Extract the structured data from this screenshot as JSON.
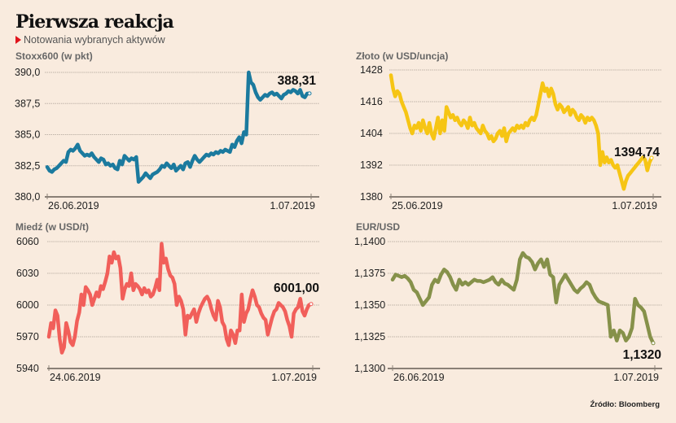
{
  "header": {
    "title": "Pierwsza reakcja",
    "subtitle": "Notowania wybranych aktywów",
    "bullet_color": "#e0141c"
  },
  "source": "Źródło: Bloomberg",
  "chart_data": [
    {
      "id": "stoxx",
      "type": "line",
      "title": "Stoxx600 (w pkt)",
      "color": "#1b7a9e",
      "ylim": [
        380.0,
        390.0
      ],
      "yticks": [
        "390,0",
        "387,5",
        "385,0",
        "382,5",
        "380,0"
      ],
      "ytick_values": [
        390.0,
        387.5,
        385.0,
        382.5,
        380.0
      ],
      "xticks": [
        "26.06.2019",
        "1.07.2019"
      ],
      "last_label": "388,31",
      "grid": true,
      "values": [
        382.4,
        382.1,
        382.0,
        382.2,
        382.3,
        382.5,
        382.7,
        382.9,
        382.8,
        383.6,
        383.8,
        383.7,
        383.9,
        384.2,
        383.7,
        383.5,
        383.3,
        383.4,
        383.3,
        383.5,
        383.2,
        383.0,
        382.8,
        383.1,
        383.0,
        382.6,
        382.7,
        382.5,
        382.6,
        382.3,
        382.2,
        382.9,
        382.6,
        383.3,
        383.1,
        382.9,
        383.1,
        383.0,
        383.2,
        381.2,
        381.4,
        381.6,
        381.9,
        381.7,
        381.5,
        381.8,
        381.9,
        382.0,
        382.2,
        382.5,
        382.4,
        382.7,
        382.5,
        382.3,
        382.6,
        382.1,
        382.3,
        382.5,
        382.2,
        382.7,
        382.8,
        382.4,
        382.9,
        383.3,
        383.0,
        382.8,
        383.0,
        383.2,
        383.4,
        383.3,
        383.5,
        383.4,
        383.6,
        383.5,
        383.7,
        383.6,
        383.8,
        383.7,
        383.6,
        384.2,
        384.0,
        384.5,
        384.8,
        384.3,
        385.2,
        385.0,
        390.0,
        389.2,
        389.0,
        388.4,
        388.0,
        387.8,
        388.0,
        388.2,
        388.1,
        388.3,
        388.4,
        388.2,
        388.3,
        388.1,
        387.9,
        388.2,
        388.3,
        388.5,
        388.4,
        388.6,
        388.5,
        388.3,
        388.6,
        388.1,
        388.0,
        388.3,
        388.31
      ]
    },
    {
      "id": "gold",
      "type": "line",
      "title": "Złoto (w USD/uncja)",
      "color": "#f6c514",
      "ylim": [
        1380,
        1428
      ],
      "yticks": [
        "1428",
        "1416",
        "1404",
        "1392",
        "1380"
      ],
      "ytick_values": [
        1428,
        1416,
        1404,
        1392,
        1380
      ],
      "xticks": [
        "25.06.2019",
        "1.07.2019"
      ],
      "last_label": "1394,74",
      "grid": true,
      "values": [
        1426,
        1421,
        1418,
        1420,
        1419,
        1416,
        1414,
        1412,
        1409,
        1406,
        1404,
        1407,
        1406,
        1408,
        1405,
        1409,
        1406,
        1404,
        1408,
        1404,
        1402,
        1406,
        1410,
        1404,
        1409,
        1405,
        1414,
        1412,
        1410,
        1411,
        1409,
        1410,
        1408,
        1407,
        1409,
        1408,
        1406,
        1410,
        1407,
        1408,
        1406,
        1405,
        1404,
        1407,
        1405,
        1404,
        1402,
        1403,
        1401,
        1402,
        1404,
        1405,
        1403,
        1406,
        1401,
        1404,
        1405,
        1406,
        1405,
        1407,
        1406,
        1407,
        1406,
        1408,
        1407,
        1409,
        1410,
        1409,
        1411,
        1415,
        1419,
        1423,
        1420,
        1421,
        1418,
        1421,
        1419,
        1415,
        1413,
        1415,
        1414,
        1412,
        1413,
        1414,
        1411,
        1413,
        1412,
        1410,
        1409,
        1411,
        1410,
        1408,
        1410,
        1409,
        1410,
        1409,
        1407,
        1404,
        1392,
        1397,
        1393,
        1395,
        1393,
        1394,
        1392,
        1391,
        1392,
        1389,
        1386,
        1383,
        1386,
        1388,
        1389,
        1390,
        1391,
        1392,
        1393,
        1394,
        1395,
        1394,
        1390,
        1393,
        1394.74
      ]
    },
    {
      "id": "copper",
      "type": "line",
      "title": "Miedź (w USD/t)",
      "color": "#f15f5a",
      "ylim": [
        5940,
        6060
      ],
      "yticks": [
        "6060",
        "6030",
        "6000",
        "5970",
        "5940"
      ],
      "ytick_values": [
        6060,
        6030,
        6000,
        5970,
        5940
      ],
      "xticks": [
        "24.06.2019",
        "1.07.2019"
      ],
      "last_label": "6001,00",
      "grid": true,
      "values": [
        5970,
        5983,
        5978,
        5995,
        5990,
        5968,
        5955,
        5960,
        5983,
        5975,
        5965,
        5962,
        5970,
        5985,
        5993,
        6010,
        6000,
        6017,
        6014,
        6010,
        6000,
        6006,
        6012,
        6008,
        6018,
        6015,
        6022,
        6030,
        6046,
        6040,
        6050,
        6044,
        6046,
        6035,
        6006,
        6015,
        6020,
        6018,
        6030,
        6014,
        6020,
        6018,
        6015,
        6010,
        6016,
        6012,
        6014,
        6008,
        6010,
        6016,
        6024,
        6014,
        6058,
        6040,
        6044,
        6034,
        6028,
        6026,
        6020,
        6000,
        6008,
        6004,
        5996,
        5972,
        5990,
        5988,
        5992,
        5996,
        5984,
        5992,
        5998,
        6002,
        6006,
        6008,
        6004,
        5996,
        5990,
        5986,
        6004,
        5998,
        5984,
        5980,
        5968,
        5962,
        5976,
        5972,
        5964,
        5976,
        5976,
        6010,
        5984,
        5992,
        5996,
        6006,
        6014,
        6008,
        6000,
        5998,
        5992,
        5988,
        5986,
        5972,
        5980,
        5988,
        5994,
        5996,
        6002,
        6000,
        5998,
        5994,
        5986,
        5980,
        5970,
        5992,
        5996,
        5998,
        6006,
        5994,
        5990,
        5996,
        6000,
        6001
      ]
    },
    {
      "id": "eurusd",
      "type": "line",
      "title": "EUR/USD",
      "color": "#86914a",
      "ylim": [
        1.13,
        1.14
      ],
      "yticks": [
        "1,1400",
        "1,1375",
        "1,1350",
        "1,1325",
        "1,1300"
      ],
      "ytick_values": [
        1.14,
        1.1375,
        1.135,
        1.1325,
        1.13
      ],
      "xticks": [
        "26.06.2019",
        "1.07.2019"
      ],
      "last_label": "1,1320",
      "grid": true,
      "values": [
        1.137,
        1.1374,
        1.1373,
        1.1372,
        1.1373,
        1.1371,
        1.1368,
        1.1362,
        1.136,
        1.1355,
        1.135,
        1.1353,
        1.1356,
        1.1366,
        1.137,
        1.1368,
        1.1374,
        1.1378,
        1.1376,
        1.1372,
        1.1366,
        1.1362,
        1.137,
        1.1366,
        1.1368,
        1.1366,
        1.1368,
        1.137,
        1.1369,
        1.1369,
        1.1368,
        1.1369,
        1.137,
        1.1372,
        1.1368,
        1.1366,
        1.137,
        1.1367,
        1.1366,
        1.1364,
        1.1362,
        1.137,
        1.1386,
        1.1391,
        1.1388,
        1.1387,
        1.1384,
        1.1378,
        1.1383,
        1.1386,
        1.138,
        1.1386,
        1.1374,
        1.1372,
        1.1352,
        1.1366,
        1.137,
        1.1374,
        1.137,
        1.1366,
        1.1362,
        1.136,
        1.1363,
        1.1365,
        1.1368,
        1.1366,
        1.136,
        1.1356,
        1.1353,
        1.1352,
        1.1351,
        1.135,
        1.1325,
        1.133,
        1.1322,
        1.133,
        1.1328,
        1.1322,
        1.1325,
        1.1332,
        1.1355,
        1.135,
        1.1348,
        1.1345,
        1.1335,
        1.1325,
        1.132
      ]
    }
  ]
}
